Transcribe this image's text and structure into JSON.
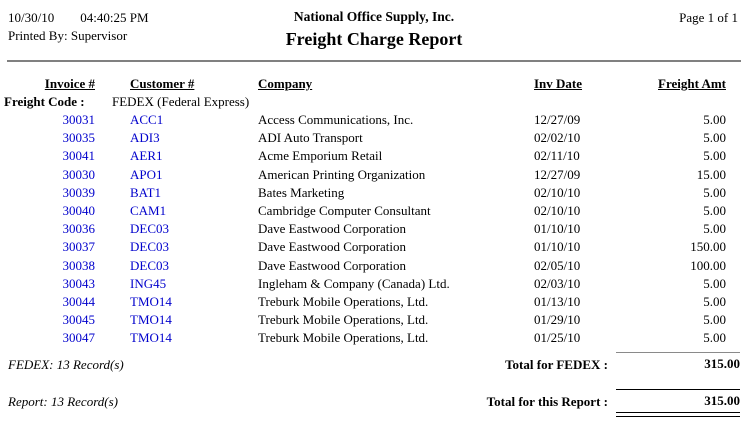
{
  "header": {
    "date": "10/30/10",
    "time": "04:40:25 PM",
    "printed_by": "Printed By: Supervisor",
    "company_name": "National Office Supply, Inc.",
    "report_title": "Freight Charge Report",
    "page_label": "Page 1 of 1"
  },
  "table": {
    "columns": {
      "invoice": "Invoice #",
      "customer": "Customer #",
      "company": "Company",
      "inv_date": "Inv Date",
      "freight_amt": "Freight Amt"
    },
    "group_header": {
      "label": "Freight Code :",
      "value": "FEDEX (Federal Express)"
    },
    "rows": [
      {
        "invoice": "30031",
        "customer": "ACC1",
        "company": "Access Communications, Inc.",
        "inv_date": "12/27/09",
        "freight_amt": "5.00"
      },
      {
        "invoice": "30035",
        "customer": "ADI3",
        "company": "ADI Auto Transport",
        "inv_date": "02/02/10",
        "freight_amt": "5.00"
      },
      {
        "invoice": "30041",
        "customer": "AER1",
        "company": "Acme Emporium Retail",
        "inv_date": "02/11/10",
        "freight_amt": "5.00"
      },
      {
        "invoice": "30030",
        "customer": "APO1",
        "company": "American Printing Organization",
        "inv_date": "12/27/09",
        "freight_amt": "15.00"
      },
      {
        "invoice": "30039",
        "customer": "BAT1",
        "company": "Bates Marketing",
        "inv_date": "02/10/10",
        "freight_amt": "5.00"
      },
      {
        "invoice": "30040",
        "customer": "CAM1",
        "company": "Cambridge Computer Consultant",
        "inv_date": "02/10/10",
        "freight_amt": "5.00"
      },
      {
        "invoice": "30036",
        "customer": "DEC03",
        "company": "Dave Eastwood Corporation",
        "inv_date": "01/10/10",
        "freight_amt": "5.00"
      },
      {
        "invoice": "30037",
        "customer": "DEC03",
        "company": "Dave Eastwood Corporation",
        "inv_date": "01/10/10",
        "freight_amt": "150.00"
      },
      {
        "invoice": "30038",
        "customer": "DEC03",
        "company": "Dave Eastwood Corporation",
        "inv_date": "02/05/10",
        "freight_amt": "100.00"
      },
      {
        "invoice": "30043",
        "customer": "ING45",
        "company": "Ingleham & Company (Canada) Ltd.",
        "inv_date": "02/03/10",
        "freight_amt": "5.00"
      },
      {
        "invoice": "30044",
        "customer": "TMO14",
        "company": "Treburk Mobile Operations, Ltd.",
        "inv_date": "01/13/10",
        "freight_amt": "5.00"
      },
      {
        "invoice": "30045",
        "customer": "TMO14",
        "company": "Treburk Mobile Operations, Ltd.",
        "inv_date": "01/29/10",
        "freight_amt": "5.00"
      },
      {
        "invoice": "30047",
        "customer": "TMO14",
        "company": "Treburk Mobile Operations, Ltd.",
        "inv_date": "01/25/10",
        "freight_amt": "5.00"
      }
    ],
    "group_footer": {
      "count": "FEDEX: 13 Record(s)",
      "total_label": "Total for FEDEX :",
      "total": "315.00"
    },
    "report_footer": {
      "count": "Report: 13 Record(s)",
      "total_label": "Total for this Report :",
      "total": "315.00"
    }
  },
  "colors": {
    "link_blue": "#0000CC",
    "rule_gray": "#808080"
  }
}
